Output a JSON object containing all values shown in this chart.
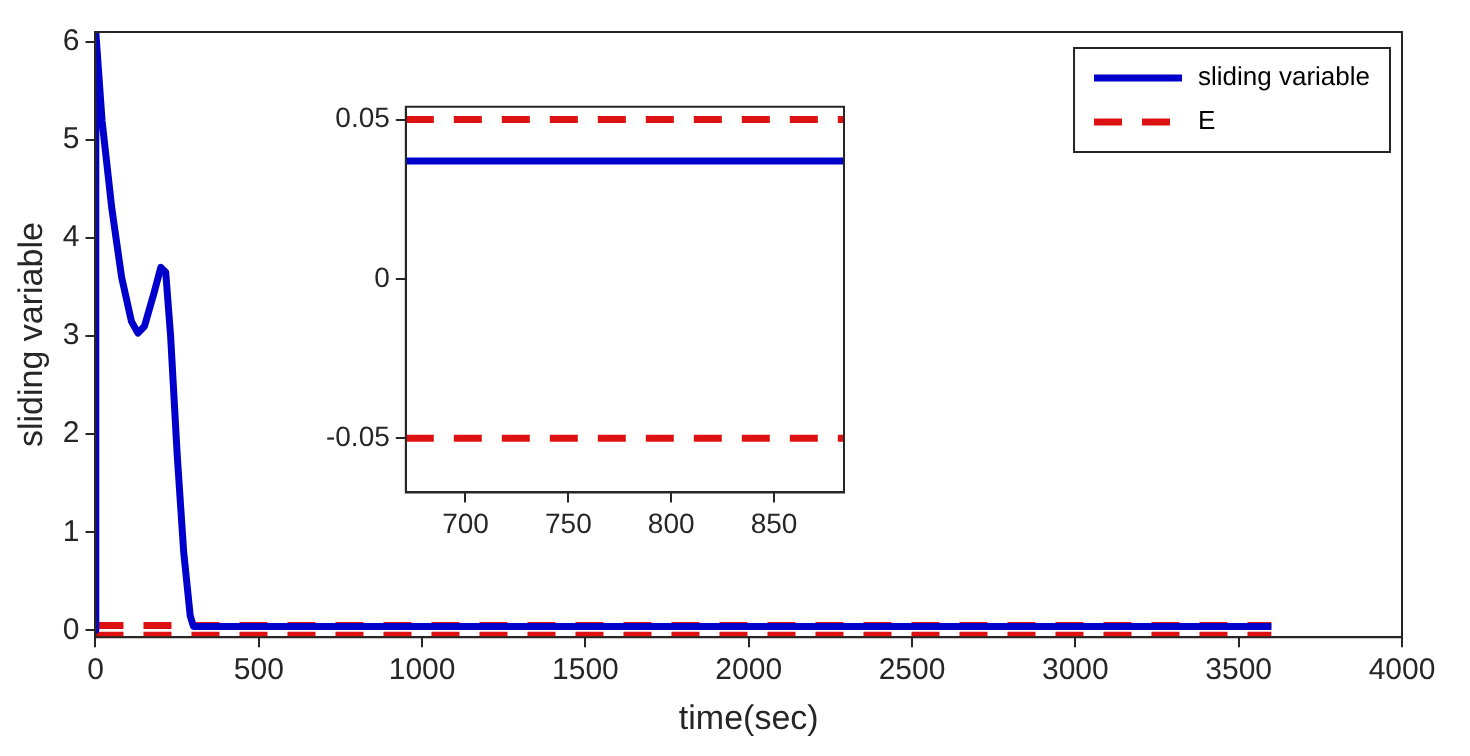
{
  "chart_data": [
    {
      "type": "line",
      "xlabel": "time(sec)",
      "ylabel": "sliding variable",
      "xlim": [
        0,
        4000
      ],
      "xticks": [
        0,
        500,
        1000,
        1500,
        2000,
        2500,
        3000,
        3500,
        4000
      ],
      "ylim": [
        -0.07,
        6.1
      ],
      "yticks": [
        0,
        1,
        2,
        3,
        4,
        5,
        6
      ],
      "legend": "top right",
      "series": [
        {
          "name": "sliding variable",
          "color": "#0000cc",
          "line_style": "solid",
          "x": [
            0,
            1,
            20,
            50,
            80,
            110,
            130,
            150,
            180,
            200,
            215,
            230,
            250,
            270,
            290,
            300,
            310,
            3600
          ],
          "values": [
            0,
            6.1,
            5.2,
            4.3,
            3.6,
            3.15,
            3.03,
            3.1,
            3.45,
            3.7,
            3.65,
            3.0,
            1.8,
            0.8,
            0.15,
            0.04,
            0.04,
            0.04
          ]
        },
        {
          "name": "E",
          "color": "#dd1111",
          "line_style": "dashed",
          "x": [
            0,
            3600
          ],
          "values": [
            0.05,
            0.05
          ]
        },
        {
          "color": "#dd1111",
          "line_style": "dashed",
          "x": [
            0,
            3600
          ],
          "values": [
            -0.05,
            -0.05
          ]
        }
      ]
    },
    {
      "type": "line",
      "xlim": [
        671,
        884
      ],
      "xticks": [
        700,
        750,
        800,
        850
      ],
      "ylim": [
        -0.067,
        0.054
      ],
      "yticks": [
        -0.05,
        0,
        0.05
      ],
      "series": [
        {
          "color": "#0000cc",
          "line_style": "solid",
          "x": [
            671,
            884
          ],
          "values": [
            0.037,
            0.037
          ]
        },
        {
          "color": "#dd1111",
          "line_style": "dashed",
          "x": [
            671,
            884
          ],
          "values": [
            0.05,
            0.05
          ]
        },
        {
          "color": "#dd1111",
          "line_style": "dashed",
          "x": [
            671,
            884
          ],
          "values": [
            -0.05,
            -0.05
          ]
        }
      ]
    }
  ]
}
